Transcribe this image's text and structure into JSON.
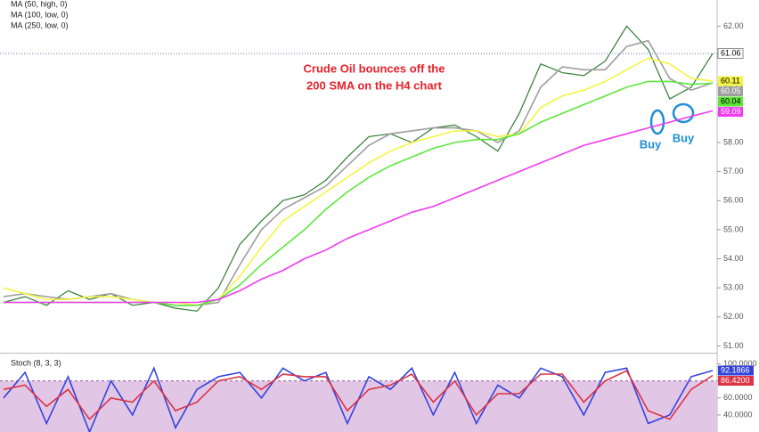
{
  "chart_data": [
    {
      "type": "line",
      "annotations": [
        "Crude Oil bounces off the",
        "200 SMA on the H4 chart",
        "Buy",
        "Buy"
      ],
      "ylim": [
        50.8,
        62.9
      ],
      "yticks": [
        {
          "value": 51,
          "label": "51.00"
        },
        {
          "value": 52,
          "label": "52.00"
        },
        {
          "value": 53,
          "label": "53.00"
        },
        {
          "value": 54,
          "label": "54.00"
        },
        {
          "value": 55,
          "label": "55.00"
        },
        {
          "value": 56,
          "label": "56.00"
        },
        {
          "value": 57,
          "label": "57.00"
        },
        {
          "value": 58,
          "label": "58.00"
        },
        {
          "value": 59,
          "label": "59.00"
        },
        {
          "value": 60,
          "label": "60.00"
        },
        {
          "value": 61,
          "label": "61.00"
        },
        {
          "value": 62,
          "label": "62.00"
        }
      ],
      "series": [
        {
          "color": "#2f7d32",
          "values": [
            52.5,
            52.7,
            52.4,
            52.9,
            52.6,
            52.8,
            52.4,
            52.5,
            52.3,
            52.2,
            53.0,
            54.5,
            55.3,
            56.0,
            56.2,
            56.7,
            57.5,
            58.2,
            58.3,
            58.0,
            58.5,
            58.6,
            58.2,
            57.7,
            59.0,
            60.7,
            60.4,
            60.3,
            60.8,
            62.0,
            61.2,
            59.5,
            59.9,
            61.06
          ]
        },
        {
          "color": "#9e9e9e",
          "values": [
            52.7,
            52.8,
            52.7,
            52.6,
            52.7,
            52.8,
            52.6,
            52.5,
            52.4,
            52.4,
            52.5,
            53.8,
            55.0,
            55.7,
            56.1,
            56.5,
            57.2,
            57.9,
            58.3,
            58.4,
            58.5,
            58.5,
            58.4,
            58.0,
            58.4,
            59.9,
            60.6,
            60.5,
            60.5,
            61.3,
            61.5,
            60.2,
            59.8,
            60.05
          ]
        },
        {
          "name": "MA (50, high, 0)",
          "color": "#f4f442",
          "values": [
            53.0,
            52.8,
            52.6,
            52.6,
            52.7,
            52.7,
            52.6,
            52.5,
            52.5,
            52.4,
            52.6,
            53.4,
            54.4,
            55.3,
            55.8,
            56.3,
            56.8,
            57.3,
            57.7,
            58.0,
            58.2,
            58.4,
            58.4,
            58.2,
            58.3,
            59.2,
            59.6,
            59.8,
            60.1,
            60.5,
            60.9,
            60.7,
            60.2,
            60.11
          ]
        },
        {
          "name": "MA (100, low, 0)",
          "color": "#5ee63c",
          "values": [
            52.5,
            52.5,
            52.5,
            52.5,
            52.5,
            52.5,
            52.5,
            52.5,
            52.4,
            52.4,
            52.6,
            53.1,
            53.8,
            54.4,
            55.0,
            55.7,
            56.3,
            56.8,
            57.2,
            57.5,
            57.8,
            58.0,
            58.1,
            58.1,
            58.3,
            58.7,
            59.0,
            59.3,
            59.6,
            59.9,
            60.1,
            60.1,
            60.0,
            60.04
          ]
        },
        {
          "name": "MA (250, low, 0)",
          "color": "#f03cf0",
          "values": [
            52.5,
            52.5,
            52.5,
            52.5,
            52.5,
            52.5,
            52.5,
            52.5,
            52.5,
            52.5,
            52.6,
            52.9,
            53.3,
            53.6,
            54.0,
            54.3,
            54.7,
            55.0,
            55.3,
            55.6,
            55.8,
            56.1,
            56.4,
            56.7,
            57.0,
            57.3,
            57.6,
            57.9,
            58.1,
            58.3,
            58.5,
            58.7,
            58.9,
            59.09
          ]
        }
      ]
    },
    {
      "type": "line",
      "title": "Stoch (8, 3, 3)",
      "ylim": [
        20,
        111
      ],
      "band": [
        20,
        80
      ],
      "yticks": [
        {
          "value": 40,
          "label": "40.0000"
        },
        {
          "value": 60,
          "label": "60.0000"
        },
        {
          "value": 80,
          "label": "80.0000"
        },
        {
          "value": 100,
          "label": "100.0000"
        }
      ],
      "series": [
        {
          "color": "#3344dd",
          "values": [
            60,
            90,
            30,
            85,
            20,
            80,
            40,
            95,
            25,
            70,
            85,
            90,
            60,
            95,
            80,
            90,
            30,
            85,
            70,
            95,
            40,
            90,
            30,
            75,
            60,
            95,
            85,
            40,
            90,
            95,
            30,
            40,
            85,
            92.1866
          ]
        },
        {
          "color": "#dd3344",
          "values": [
            70,
            75,
            50,
            70,
            35,
            60,
            55,
            80,
            45,
            55,
            80,
            85,
            70,
            88,
            85,
            85,
            45,
            70,
            75,
            88,
            55,
            80,
            40,
            65,
            65,
            88,
            88,
            55,
            80,
            92,
            45,
            35,
            70,
            86.42
          ],
          "value_labels": [
            null,
            null,
            null,
            null,
            null,
            null,
            null,
            null,
            null,
            null,
            null,
            null,
            null,
            null,
            null,
            null,
            null,
            null,
            null,
            null,
            null,
            null,
            null,
            null,
            null,
            null,
            null,
            null,
            null,
            null,
            null,
            null,
            null,
            "86.4200"
          ]
        }
      ]
    }
  ]
}
